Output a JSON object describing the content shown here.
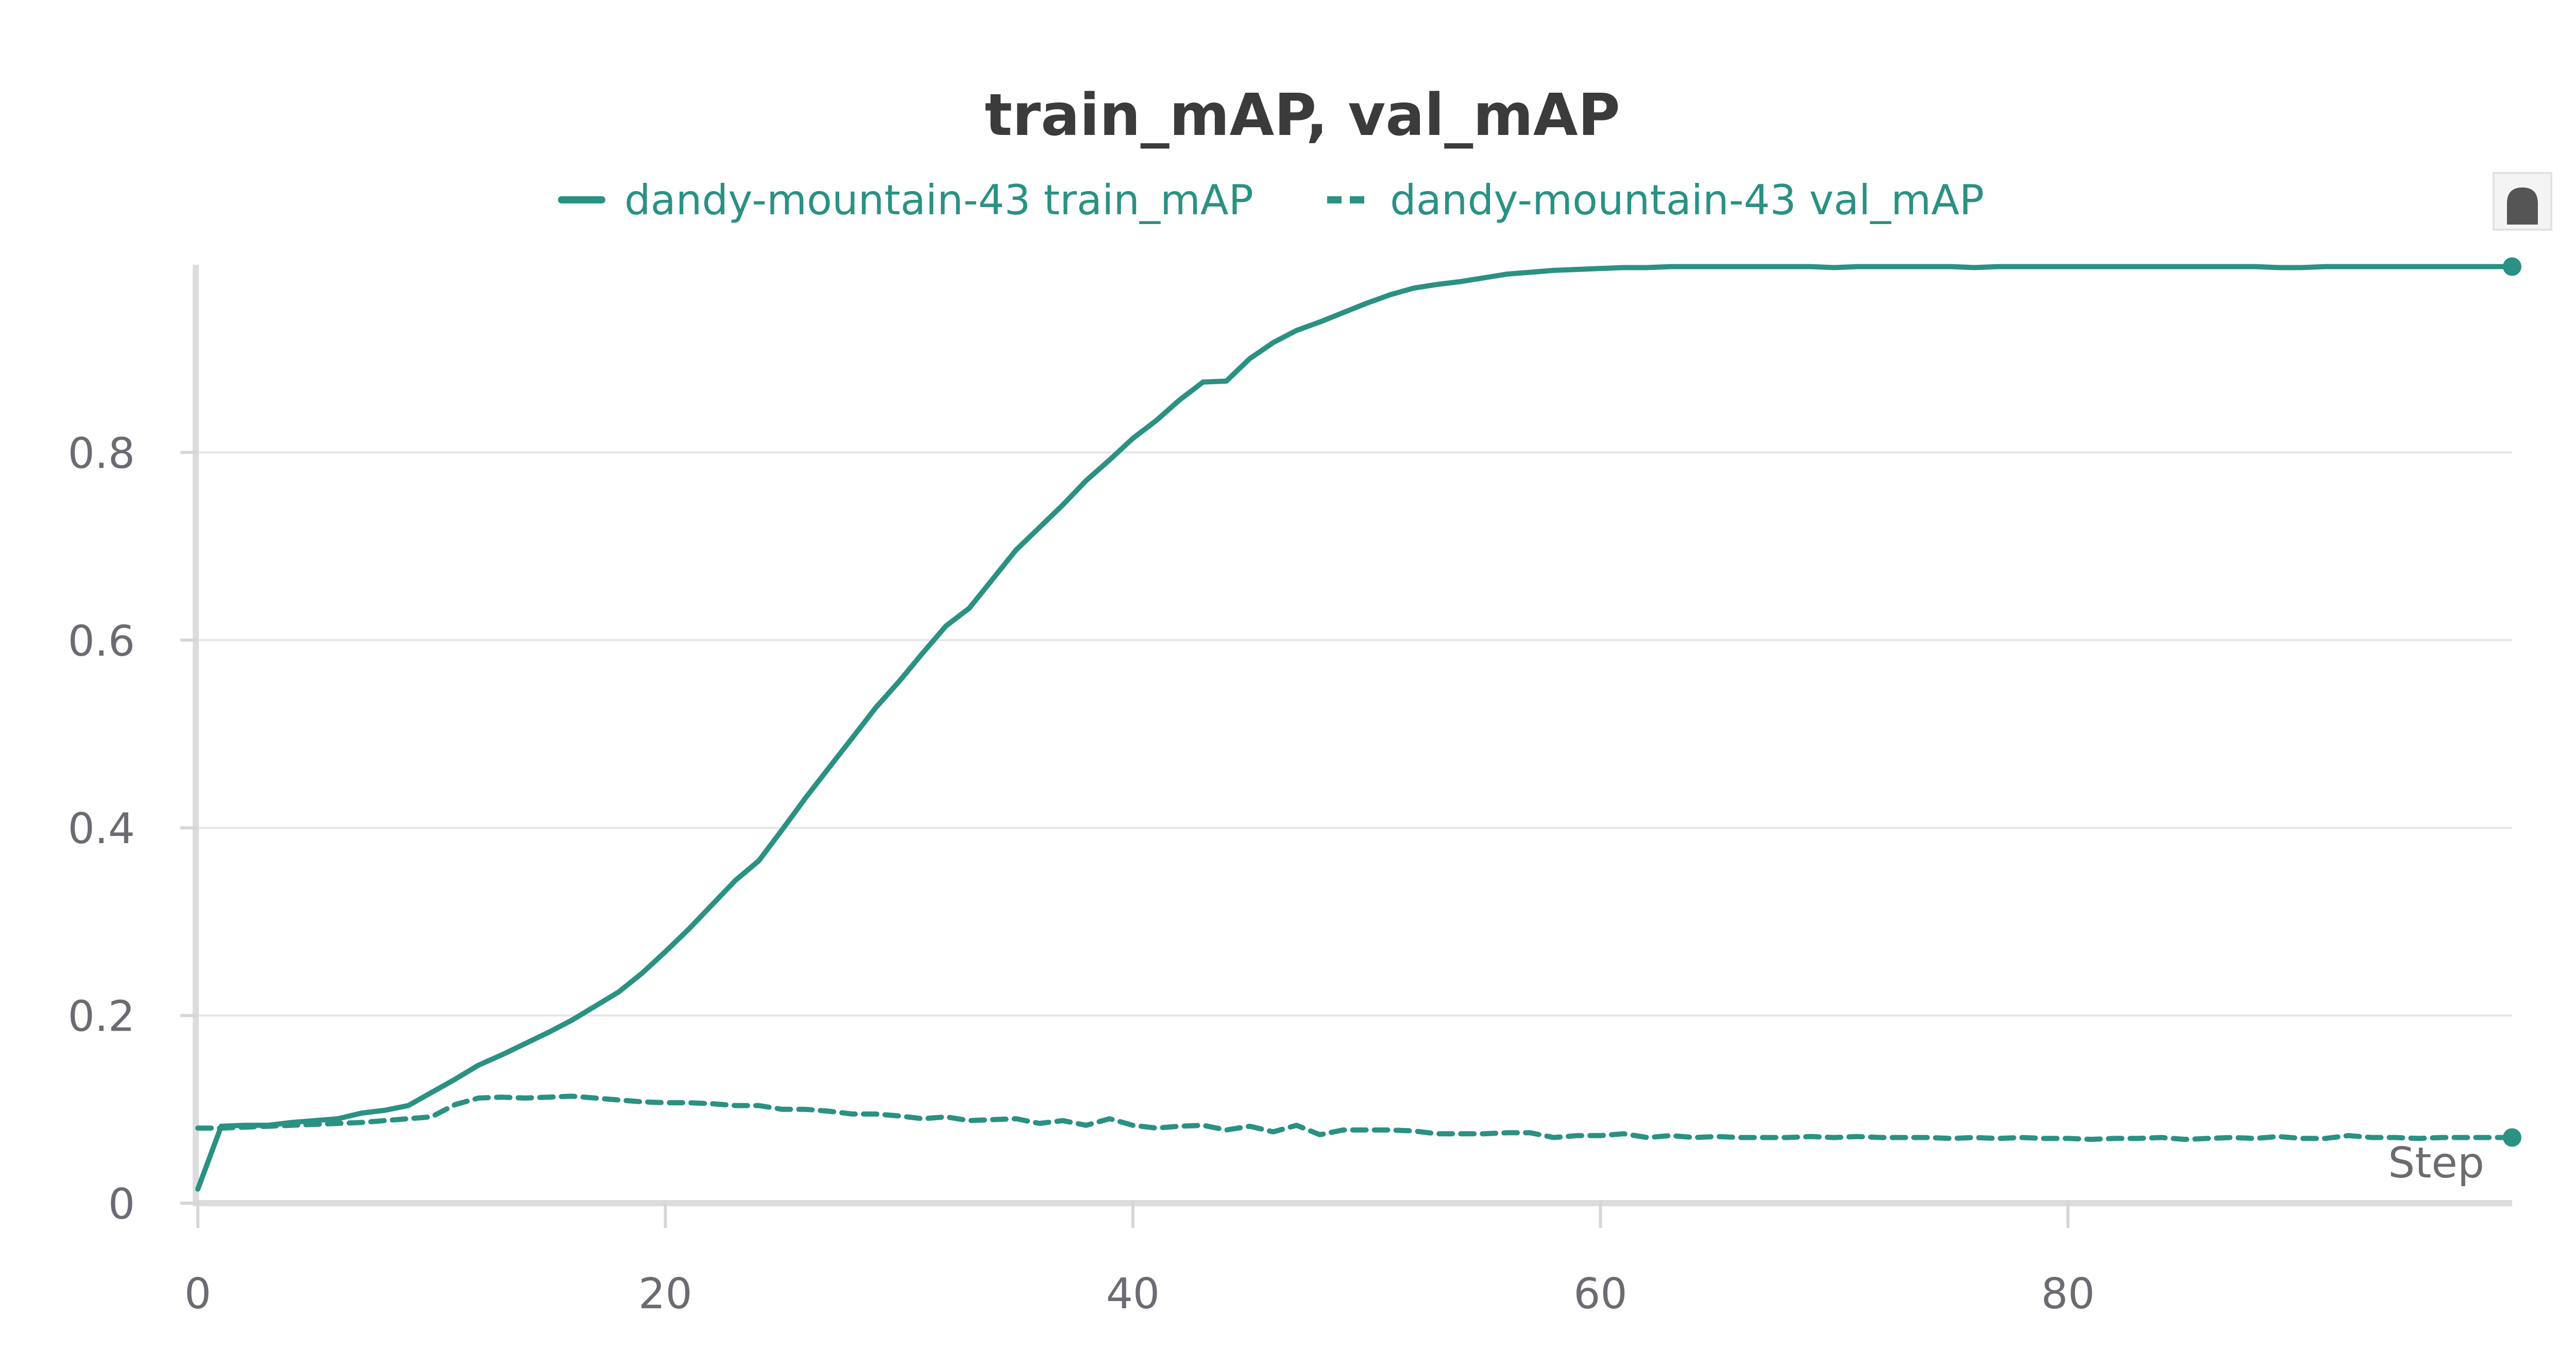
{
  "chart_data": {
    "type": "line",
    "title": "train_mAP, val_mAP",
    "xlabel": "Step",
    "ylabel": "",
    "xlim": [
      0,
      99
    ],
    "ylim": [
      0,
      1.0
    ],
    "x_ticks": [
      0,
      20,
      40,
      60,
      80
    ],
    "y_ticks": [
      0,
      0.2,
      0.4,
      0.6,
      0.8
    ],
    "grid": true,
    "legend_position": "top-center",
    "colors": {
      "series": "#2a9183"
    },
    "series": [
      {
        "name": "dandy-mountain-43 train_mAP",
        "style": "solid",
        "x": [
          0,
          1,
          2,
          3,
          4,
          5,
          6,
          7,
          8,
          9,
          10,
          11,
          12,
          13,
          14,
          15,
          16,
          17,
          18,
          19,
          20,
          21,
          22,
          23,
          24,
          25,
          26,
          27,
          28,
          29,
          30,
          31,
          32,
          33,
          34,
          35,
          36,
          37,
          38,
          39,
          40,
          41,
          42,
          43,
          44,
          45,
          46,
          47,
          48,
          49,
          50,
          51,
          52,
          53,
          54,
          55,
          56,
          57,
          58,
          59,
          60,
          61,
          62,
          63,
          64,
          65,
          66,
          67,
          68,
          69,
          70,
          71,
          72,
          73,
          74,
          75,
          76,
          77,
          78,
          79,
          80,
          81,
          82,
          83,
          84,
          85,
          86,
          87,
          88,
          89,
          90,
          91,
          92,
          93,
          94,
          95,
          96,
          97,
          98,
          99
        ],
        "y": [
          0.015,
          0.082,
          0.083,
          0.083,
          0.086,
          0.088,
          0.09,
          0.096,
          0.099,
          0.104,
          0.118,
          0.132,
          0.147,
          0.158,
          0.17,
          0.182,
          0.195,
          0.21,
          0.225,
          0.245,
          0.268,
          0.292,
          0.318,
          0.344,
          0.365,
          0.398,
          0.432,
          0.464,
          0.496,
          0.528,
          0.556,
          0.586,
          0.615,
          0.634,
          0.665,
          0.696,
          0.72,
          0.744,
          0.77,
          0.792,
          0.815,
          0.834,
          0.856,
          0.875,
          0.876,
          0.9,
          0.917,
          0.93,
          0.939,
          0.949,
          0.959,
          0.968,
          0.975,
          0.979,
          0.982,
          0.986,
          0.99,
          0.992,
          0.994,
          0.995,
          0.996,
          0.997,
          0.997,
          0.998,
          0.998,
          0.998,
          0.998,
          0.998,
          0.998,
          0.998,
          0.997,
          0.998,
          0.998,
          0.998,
          0.998,
          0.998,
          0.997,
          0.998,
          0.998,
          0.998,
          0.998,
          0.998,
          0.998,
          0.998,
          0.998,
          0.998,
          0.998,
          0.998,
          0.998,
          0.997,
          0.997,
          0.998,
          0.998,
          0.998,
          0.998,
          0.998,
          0.998,
          0.998,
          0.998,
          0.998
        ]
      },
      {
        "name": "dandy-mountain-43 val_mAP",
        "style": "dashed",
        "x": [
          0,
          1,
          2,
          3,
          4,
          5,
          6,
          7,
          8,
          9,
          10,
          11,
          12,
          13,
          14,
          15,
          16,
          17,
          18,
          19,
          20,
          21,
          22,
          23,
          24,
          25,
          26,
          27,
          28,
          29,
          30,
          31,
          32,
          33,
          34,
          35,
          36,
          37,
          38,
          39,
          40,
          41,
          42,
          43,
          44,
          45,
          46,
          47,
          48,
          49,
          50,
          51,
          52,
          53,
          54,
          55,
          56,
          57,
          58,
          59,
          60,
          61,
          62,
          63,
          64,
          65,
          66,
          67,
          68,
          69,
          70,
          71,
          72,
          73,
          74,
          75,
          76,
          77,
          78,
          79,
          80,
          81,
          82,
          83,
          84,
          85,
          86,
          87,
          88,
          89,
          90,
          91,
          92,
          93,
          94,
          95,
          96,
          97,
          98,
          99
        ],
        "y": [
          0.08,
          0.08,
          0.081,
          0.082,
          0.083,
          0.084,
          0.085,
          0.086,
          0.088,
          0.09,
          0.092,
          0.105,
          0.112,
          0.113,
          0.112,
          0.113,
          0.114,
          0.112,
          0.11,
          0.108,
          0.107,
          0.107,
          0.106,
          0.104,
          0.104,
          0.1,
          0.1,
          0.098,
          0.095,
          0.095,
          0.093,
          0.09,
          0.092,
          0.088,
          0.089,
          0.09,
          0.085,
          0.088,
          0.083,
          0.09,
          0.083,
          0.08,
          0.082,
          0.083,
          0.078,
          0.082,
          0.076,
          0.083,
          0.073,
          0.078,
          0.078,
          0.078,
          0.077,
          0.074,
          0.074,
          0.074,
          0.075,
          0.075,
          0.07,
          0.072,
          0.072,
          0.074,
          0.07,
          0.072,
          0.07,
          0.071,
          0.07,
          0.07,
          0.07,
          0.071,
          0.07,
          0.071,
          0.07,
          0.07,
          0.07,
          0.069,
          0.07,
          0.069,
          0.07,
          0.069,
          0.069,
          0.068,
          0.069,
          0.069,
          0.07,
          0.068,
          0.069,
          0.07,
          0.069,
          0.071,
          0.069,
          0.069,
          0.072,
          0.07,
          0.07,
          0.069,
          0.07,
          0.07,
          0.07,
          0.07
        ]
      }
    ]
  }
}
